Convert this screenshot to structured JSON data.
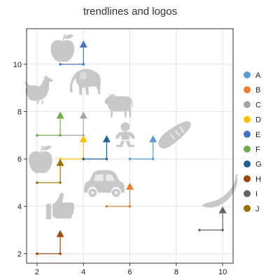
{
  "chart_data": {
    "type": "scatter",
    "title": "trendlines and logos",
    "xlabel": "",
    "ylabel": "",
    "xlim": [
      1.55,
      10.45
    ],
    "ylim": [
      1.6,
      11.5
    ],
    "x_ticks": [
      2,
      4,
      6,
      8,
      10
    ],
    "y_ticks": [
      2,
      4,
      6,
      8,
      10
    ],
    "grid": true,
    "legend_position": "right",
    "series": [
      {
        "name": "A",
        "color": "#5b9bd5",
        "points": [
          [
            6,
            6
          ],
          [
            7,
            6
          ],
          [
            7,
            7
          ]
        ]
      },
      {
        "name": "B",
        "color": "#ed7d31",
        "points": [
          [
            5,
            4
          ],
          [
            6,
            4
          ],
          [
            6,
            5
          ]
        ]
      },
      {
        "name": "C",
        "color": "#a5a5a5",
        "points": [
          [
            3,
            7
          ],
          [
            4,
            7
          ],
          [
            4,
            8
          ]
        ]
      },
      {
        "name": "D",
        "color": "#ffc000",
        "points": [
          [
            3,
            6
          ],
          [
            4,
            6
          ],
          [
            4,
            7
          ]
        ]
      },
      {
        "name": "E",
        "color": "#4472c4",
        "points": [
          [
            3,
            10
          ],
          [
            4,
            10
          ],
          [
            4,
            11
          ]
        ]
      },
      {
        "name": "F",
        "color": "#70ad47",
        "points": [
          [
            2,
            7
          ],
          [
            3,
            7
          ],
          [
            3,
            8
          ]
        ]
      },
      {
        "name": "G",
        "color": "#255e91",
        "points": [
          [
            4,
            6
          ],
          [
            5,
            6
          ],
          [
            5,
            7
          ]
        ]
      },
      {
        "name": "H",
        "color": "#9e480e",
        "points": [
          [
            2,
            2
          ],
          [
            3,
            2
          ],
          [
            3,
            3
          ]
        ]
      },
      {
        "name": "I",
        "color": "#636363",
        "points": [
          [
            9,
            3
          ],
          [
            10,
            3
          ],
          [
            10,
            4
          ]
        ]
      },
      {
        "name": "J",
        "color": "#997300",
        "points": [
          [
            2,
            5
          ],
          [
            3,
            5
          ],
          [
            3,
            6
          ]
        ]
      }
    ],
    "logos": [
      {
        "icon": "apple-icon",
        "x": 3.1,
        "y": 10.7
      },
      {
        "icon": "chicken-icon",
        "x": 2.15,
        "y": 9.0
      },
      {
        "icon": "elephant-icon",
        "x": 4.1,
        "y": 9.3
      },
      {
        "icon": "cow-icon",
        "x": 5.5,
        "y": 8.3
      },
      {
        "icon": "baby-icon",
        "x": 5.8,
        "y": 7.0
      },
      {
        "icon": "bread-icon",
        "x": 7.9,
        "y": 7.0
      },
      {
        "icon": "apple-icon",
        "x": 2.15,
        "y": 6.0
      },
      {
        "icon": "car-icon",
        "x": 4.9,
        "y": 5.0
      },
      {
        "icon": "banana-icon",
        "x": 9.9,
        "y": 4.6
      },
      {
        "icon": "thumbs-up-icon",
        "x": 3.0,
        "y": 4.0
      }
    ]
  }
}
